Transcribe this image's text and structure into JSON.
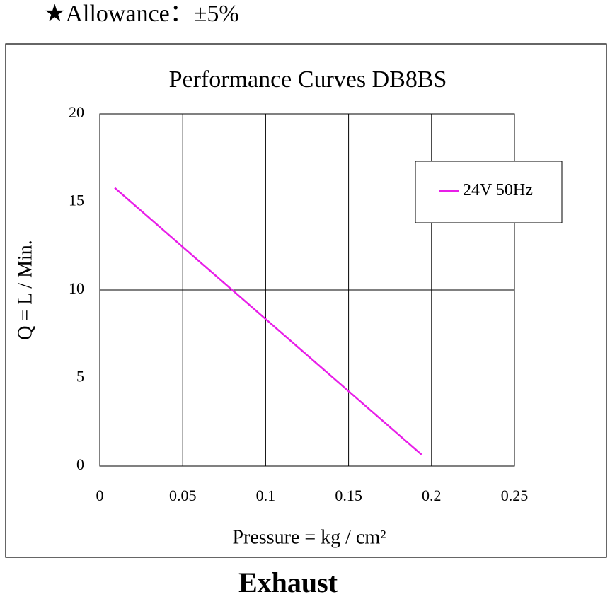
{
  "chart_data": {
    "type": "line",
    "annotation": "★Allowance：±5%",
    "title": "Performance  Curves  DB8BS",
    "x_label": "Pressure = kg / cm²",
    "y_label": "Q = L / Min.",
    "caption": "Exhaust",
    "x": [
      0.009,
      0.194
    ],
    "series": [
      {
        "name": "24V 50Hz",
        "color": "#e81ee8",
        "values": [
          15.8,
          0.65
        ]
      }
    ],
    "xlim": [
      0,
      0.25
    ],
    "xticks": [
      0,
      0.05,
      0.1,
      0.15,
      0.2,
      0.25
    ],
    "ylim": [
      0,
      20
    ],
    "yticks": [
      0,
      5,
      10,
      15,
      20
    ],
    "grid": true,
    "legend": "upper right"
  }
}
